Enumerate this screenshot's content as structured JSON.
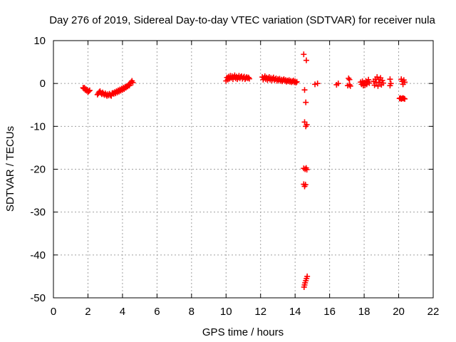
{
  "chart_data": {
    "type": "scatter",
    "title": "Day 276 of 2019, Sidereal Day-to-day VTEC variation (SDTVAR) for receiver nula",
    "xlabel": "GPS time / hours",
    "ylabel": "SDTVAR / TECUs",
    "xlim": [
      0,
      22
    ],
    "ylim": [
      -50,
      10
    ],
    "xticks": [
      "0",
      "2",
      "4",
      "6",
      "8",
      "10",
      "12",
      "14",
      "16",
      "18",
      "20",
      "22"
    ],
    "yticks": [
      "10",
      "0",
      "-10",
      "-20",
      "-30",
      "-40",
      "-50"
    ],
    "grid": true,
    "marker": "plus",
    "marker_color": "#ff0000",
    "series": [
      {
        "name": "SDTVAR",
        "points": [
          [
            1.72,
            -1.0
          ],
          [
            1.76,
            -1.2
          ],
          [
            1.8,
            -1.0
          ],
          [
            1.84,
            -1.5
          ],
          [
            1.88,
            -1.3
          ],
          [
            1.92,
            -1.7
          ],
          [
            1.96,
            -1.5
          ],
          [
            2.0,
            -2.0
          ],
          [
            2.05,
            -1.8
          ],
          [
            2.1,
            -1.6
          ],
          [
            2.55,
            -2.6
          ],
          [
            2.6,
            -2.3
          ],
          [
            2.65,
            -2.0
          ],
          [
            2.7,
            -1.8
          ],
          [
            2.75,
            -2.2
          ],
          [
            2.8,
            -2.5
          ],
          [
            2.85,
            -2.1
          ],
          [
            2.9,
            -2.4
          ],
          [
            2.95,
            -2.7
          ],
          [
            3.0,
            -2.3
          ],
          [
            3.05,
            -2.6
          ],
          [
            3.1,
            -2.9
          ],
          [
            3.15,
            -2.5
          ],
          [
            3.2,
            -2.8
          ],
          [
            3.25,
            -2.4
          ],
          [
            3.3,
            -2.7
          ],
          [
            3.35,
            -2.9
          ],
          [
            3.4,
            -2.3
          ],
          [
            3.45,
            -2.2
          ],
          [
            3.5,
            -2.4
          ],
          [
            3.55,
            -2.0
          ],
          [
            3.6,
            -2.3
          ],
          [
            3.65,
            -1.8
          ],
          [
            3.7,
            -2.1
          ],
          [
            3.75,
            -1.6
          ],
          [
            3.8,
            -1.9
          ],
          [
            3.85,
            -1.4
          ],
          [
            3.9,
            -1.7
          ],
          [
            3.95,
            -1.2
          ],
          [
            4.0,
            -1.5
          ],
          [
            4.05,
            -1.0
          ],
          [
            4.1,
            -1.3
          ],
          [
            4.15,
            -0.8
          ],
          [
            4.2,
            -1.0
          ],
          [
            4.25,
            -0.6
          ],
          [
            4.3,
            -0.7
          ],
          [
            4.35,
            -0.3
          ],
          [
            4.4,
            -0.5
          ],
          [
            4.45,
            0.0
          ],
          [
            4.5,
            0.3
          ],
          [
            4.55,
            0.6
          ],
          [
            4.6,
            0.2
          ],
          [
            10.0,
            0.6
          ],
          [
            10.05,
            1.4
          ],
          [
            10.1,
            0.9
          ],
          [
            10.15,
            1.6
          ],
          [
            10.2,
            1.1
          ],
          [
            10.25,
            1.8
          ],
          [
            10.3,
            1.3
          ],
          [
            10.35,
            1.7
          ],
          [
            10.4,
            1.0
          ],
          [
            10.45,
            1.5
          ],
          [
            10.5,
            1.9
          ],
          [
            10.55,
            1.2
          ],
          [
            10.6,
            1.6
          ],
          [
            10.65,
            1.0
          ],
          [
            10.7,
            1.4
          ],
          [
            10.75,
            1.8
          ],
          [
            10.8,
            1.2
          ],
          [
            10.85,
            1.5
          ],
          [
            10.9,
            1.7
          ],
          [
            10.95,
            1.1
          ],
          [
            11.0,
            1.4
          ],
          [
            11.05,
            1.6
          ],
          [
            11.1,
            1.0
          ],
          [
            11.15,
            1.3
          ],
          [
            11.2,
            1.5
          ],
          [
            11.25,
            1.2
          ],
          [
            11.3,
            1.4
          ],
          [
            11.35,
            1.1
          ],
          [
            12.1,
            1.5
          ],
          [
            12.15,
            0.9
          ],
          [
            12.2,
            1.3
          ],
          [
            12.25,
            1.7
          ],
          [
            12.3,
            1.0
          ],
          [
            12.35,
            1.4
          ],
          [
            12.4,
            0.8
          ],
          [
            12.45,
            1.2
          ],
          [
            12.5,
            1.5
          ],
          [
            12.55,
            0.9
          ],
          [
            12.6,
            1.3
          ],
          [
            12.65,
            0.7
          ],
          [
            12.7,
            1.1
          ],
          [
            12.75,
            1.4
          ],
          [
            12.8,
            0.8
          ],
          [
            12.85,
            1.0
          ],
          [
            12.9,
            1.2
          ],
          [
            12.95,
            0.6
          ],
          [
            13.0,
            1.0
          ],
          [
            13.05,
            0.8
          ],
          [
            13.1,
            1.1
          ],
          [
            13.15,
            0.6
          ],
          [
            13.2,
            0.9
          ],
          [
            13.25,
            0.5
          ],
          [
            13.3,
            0.8
          ],
          [
            13.35,
            1.0
          ],
          [
            13.4,
            0.6
          ],
          [
            13.45,
            0.8
          ],
          [
            13.5,
            0.4
          ],
          [
            13.55,
            0.7
          ],
          [
            13.6,
            0.5
          ],
          [
            13.65,
            0.8
          ],
          [
            13.7,
            0.4
          ],
          [
            13.75,
            0.6
          ],
          [
            13.8,
            0.3
          ],
          [
            13.85,
            0.5
          ],
          [
            13.9,
            0.7
          ],
          [
            13.95,
            0.3
          ],
          [
            14.0,
            0.5
          ],
          [
            14.05,
            0.2
          ],
          [
            14.1,
            0.4
          ],
          [
            14.5,
            6.8
          ],
          [
            14.65,
            5.4
          ],
          [
            14.55,
            -1.5
          ],
          [
            14.62,
            -4.4
          ],
          [
            14.55,
            -9.0
          ],
          [
            14.62,
            -10.0
          ],
          [
            14.68,
            -9.6
          ],
          [
            14.5,
            -19.8
          ],
          [
            14.58,
            -20.0
          ],
          [
            14.64,
            -19.7
          ],
          [
            14.68,
            -20.1
          ],
          [
            14.5,
            -23.5
          ],
          [
            14.55,
            -24.0
          ],
          [
            14.6,
            -23.6
          ],
          [
            14.52,
            -47.5
          ],
          [
            14.55,
            -47.0
          ],
          [
            14.58,
            -46.5
          ],
          [
            14.62,
            -46.0
          ],
          [
            14.66,
            -45.5
          ],
          [
            14.7,
            -45.0
          ],
          [
            15.15,
            -0.2
          ],
          [
            15.3,
            0.0
          ],
          [
            16.4,
            -0.3
          ],
          [
            16.5,
            0.0
          ],
          [
            17.1,
            1.2
          ],
          [
            17.15,
            0.9
          ],
          [
            17.05,
            -0.5
          ],
          [
            17.15,
            -0.3
          ],
          [
            17.2,
            -0.6
          ],
          [
            17.8,
            0.3
          ],
          [
            17.85,
            -0.2
          ],
          [
            17.9,
            0.5
          ],
          [
            17.95,
            -0.5
          ],
          [
            18.0,
            0.2
          ],
          [
            18.05,
            -0.4
          ],
          [
            18.1,
            0.6
          ],
          [
            18.15,
            -0.2
          ],
          [
            18.2,
            0.4
          ],
          [
            18.25,
            0.9
          ],
          [
            18.3,
            0.1
          ],
          [
            18.55,
            0.5
          ],
          [
            18.6,
            -0.4
          ],
          [
            18.65,
            1.0
          ],
          [
            18.7,
            0.2
          ],
          [
            18.75,
            1.5
          ],
          [
            18.8,
            -0.6
          ],
          [
            18.85,
            0.9
          ],
          [
            18.9,
            0.3
          ],
          [
            18.95,
            1.3
          ],
          [
            19.0,
            -0.3
          ],
          [
            19.05,
            0.7
          ],
          [
            19.1,
            0.1
          ],
          [
            19.5,
            1.0
          ],
          [
            19.55,
            0.0
          ],
          [
            19.5,
            -0.5
          ],
          [
            20.15,
            1.0
          ],
          [
            20.2,
            0.5
          ],
          [
            20.25,
            -0.2
          ],
          [
            20.3,
            0.8
          ],
          [
            20.35,
            0.3
          ],
          [
            20.05,
            -3.5
          ],
          [
            20.1,
            -3.4
          ],
          [
            20.15,
            -3.6
          ],
          [
            20.2,
            -3.5
          ],
          [
            20.25,
            -3.4
          ],
          [
            20.3,
            -3.5
          ],
          [
            20.35,
            -3.6
          ]
        ]
      }
    ]
  }
}
